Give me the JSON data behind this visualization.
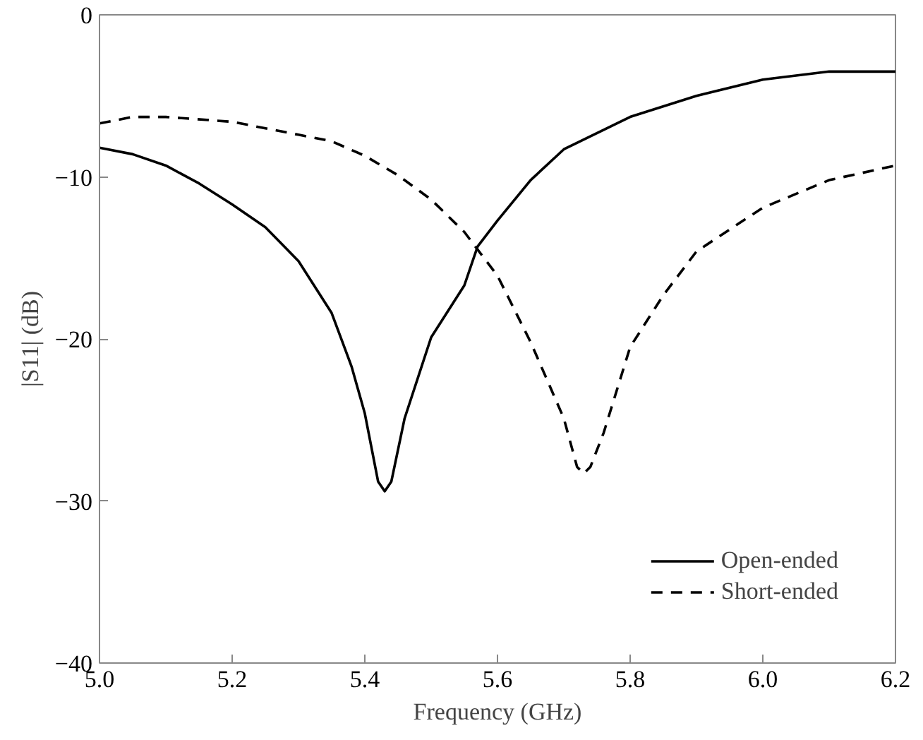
{
  "chart_data": {
    "type": "line",
    "xlabel": "Frequency (GHz)",
    "ylabel": "|S11| (dB)",
    "xlim": [
      5.0,
      6.2
    ],
    "ylim": [
      -40,
      0
    ],
    "xticks": [
      {
        "value": 5.0,
        "label": "5.0"
      },
      {
        "value": 5.2,
        "label": "5.2"
      },
      {
        "value": 5.4,
        "label": "5.4"
      },
      {
        "value": 5.6,
        "label": "5.6"
      },
      {
        "value": 5.8,
        "label": "5.8"
      },
      {
        "value": 6.0,
        "label": "6.0"
      },
      {
        "value": 6.2,
        "label": "6.2"
      }
    ],
    "yticks": [
      -40,
      -30,
      -20,
      -10,
      0
    ],
    "grid": false,
    "legend": "bottom right",
    "marker": "none",
    "series": [
      {
        "name": "Open-ended",
        "color": "#000000",
        "line_style": "solid",
        "x": [
          5.0,
          5.05,
          5.1,
          5.15,
          5.2,
          5.25,
          5.3,
          5.35,
          5.38,
          5.4,
          5.42,
          5.43,
          5.44,
          5.46,
          5.5,
          5.55,
          5.57,
          5.6,
          5.65,
          5.7,
          5.8,
          5.9,
          6.0,
          6.1,
          6.2
        ],
        "values": [
          -8.2,
          -8.6,
          -9.3,
          -10.4,
          -11.7,
          -13.1,
          -15.2,
          -18.4,
          -21.7,
          -24.6,
          -28.8,
          -29.4,
          -28.8,
          -24.9,
          -19.9,
          -16.7,
          -14.3,
          -12.7,
          -10.2,
          -8.3,
          -6.3,
          -5.0,
          -4.0,
          -3.5,
          -3.5
        ]
      },
      {
        "name": "Short-ended",
        "color": "#000000",
        "line_style": "dashed",
        "x": [
          5.0,
          5.05,
          5.1,
          5.2,
          5.3,
          5.35,
          5.4,
          5.45,
          5.5,
          5.55,
          5.6,
          5.65,
          5.7,
          5.72,
          5.73,
          5.74,
          5.76,
          5.8,
          5.85,
          5.9,
          6.0,
          6.1,
          6.2
        ],
        "values": [
          -6.7,
          -6.3,
          -6.3,
          -6.6,
          -7.4,
          -7.8,
          -8.7,
          -9.9,
          -11.4,
          -13.4,
          -16.1,
          -20.2,
          -24.9,
          -27.9,
          -28.3,
          -27.9,
          -25.8,
          -20.5,
          -17.3,
          -14.6,
          -11.9,
          -10.2,
          -9.3
        ]
      }
    ]
  }
}
